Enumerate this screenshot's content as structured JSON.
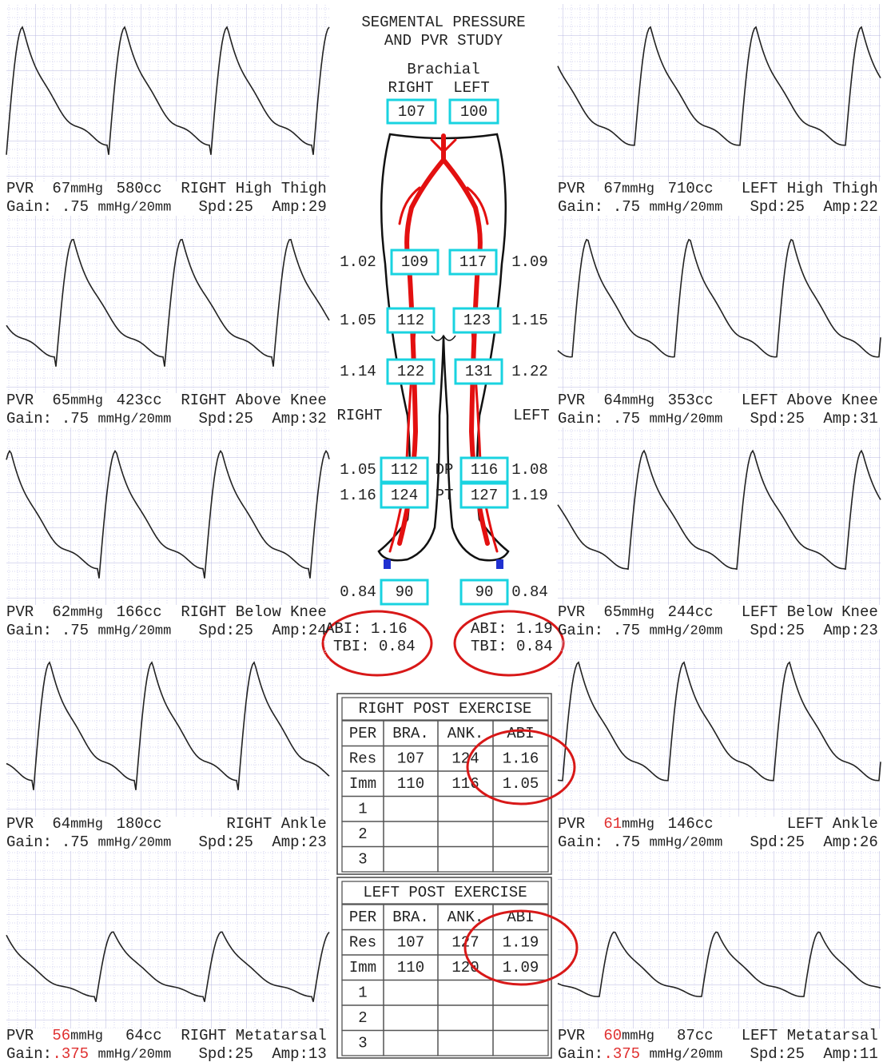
{
  "header": {
    "title": [
      "SEGMENTAL PRESSURE",
      "AND PVR STUDY"
    ],
    "brachial": "Brachial",
    "right": "RIGHT",
    "left": "LEFT",
    "brachial_right": "107",
    "brachial_left": "100"
  },
  "side_labels": {
    "right": "RIGHT",
    "left": "LEFT"
  },
  "segments": [
    {
      "right_ratio": "1.02",
      "right_pressure": "109",
      "left_pressure": "117",
      "left_ratio": "1.09"
    },
    {
      "right_ratio": "1.05",
      "right_pressure": "112",
      "left_pressure": "123",
      "left_ratio": "1.15"
    },
    {
      "right_ratio": "1.14",
      "right_pressure": "122",
      "left_pressure": "131",
      "left_ratio": "1.22"
    },
    {
      "right_ratio": "1.05",
      "right_pressure": "112",
      "site": "DP",
      "left_pressure": "116",
      "left_ratio": "1.08"
    },
    {
      "right_ratio": "1.16",
      "right_pressure": "124",
      "site": "PT",
      "left_pressure": "127",
      "left_ratio": "1.19"
    },
    {
      "right_ratio": "0.84",
      "right_pressure": "90",
      "left_pressure": "90",
      "left_ratio": "0.84"
    }
  ],
  "indices": {
    "right": {
      "abi": "ABI: 1.16",
      "tbi": "TBI: 0.84"
    },
    "left": {
      "abi": "ABI: 1.19",
      "tbi": "TBI: 0.84"
    }
  },
  "panels": {
    "right": [
      {
        "pvr": "PVR",
        "pressure": "67",
        "unit": "mmHg",
        "volume": "580cc",
        "site": "RIGHT High Thigh",
        "gain_label": "Gain:",
        "gain": ".75",
        "gain_unit": "mmHg/20mm",
        "speed": "Spd:25",
        "amp": "Amp:29"
      },
      {
        "pvr": "PVR",
        "pressure": "65",
        "unit": "mmHg",
        "volume": "423cc",
        "site": "RIGHT Above Knee",
        "gain_label": "Gain:",
        "gain": ".75",
        "gain_unit": "mmHg/20mm",
        "speed": "Spd:25",
        "amp": "Amp:32"
      },
      {
        "pvr": "PVR",
        "pressure": "62",
        "unit": "mmHg",
        "volume": "166cc",
        "site": "RIGHT Below Knee",
        "gain_label": "Gain:",
        "gain": ".75",
        "gain_unit": "mmHg/20mm",
        "speed": "Spd:25",
        "amp": "Amp:24"
      },
      {
        "pvr": "PVR",
        "pressure": "64",
        "unit": "mmHg",
        "volume": "180cc",
        "site": "RIGHT Ankle",
        "gain_label": "Gain:",
        "gain": ".75",
        "gain_unit": "mmHg/20mm",
        "speed": "Spd:25",
        "amp": "Amp:23"
      },
      {
        "pvr": "PVR",
        "pressure": "56",
        "pressure_color": "#e03030",
        "unit": "mmHg",
        "volume": "64cc",
        "site": "RIGHT Metatarsal",
        "gain_label": "Gain:",
        "gain": ".375",
        "gain_color": "#e03030",
        "gain_unit": "mmHg/20mm",
        "speed": "Spd:25",
        "amp": "Amp:13"
      }
    ],
    "left": [
      {
        "pvr": "PVR",
        "pressure": "67",
        "unit": "mmHg",
        "volume": "710cc",
        "site": "LEFT High Thigh",
        "gain_label": "Gain:",
        "gain": ".75",
        "gain_unit": "mmHg/20mm",
        "speed": "Spd:25",
        "amp": "Amp:22"
      },
      {
        "pvr": "PVR",
        "pressure": "64",
        "unit": "mmHg",
        "volume": "353cc",
        "site": "LEFT Above Knee",
        "gain_label": "Gain:",
        "gain": ".75",
        "gain_unit": "mmHg/20mm",
        "speed": "Spd:25",
        "amp": "Amp:31"
      },
      {
        "pvr": "PVR",
        "pressure": "65",
        "unit": "mmHg",
        "volume": "244cc",
        "site": "LEFT Below Knee",
        "gain_label": "Gain:",
        "gain": ".75",
        "gain_unit": "mmHg/20mm",
        "speed": "Spd:25",
        "amp": "Amp:23"
      },
      {
        "pvr": "PVR",
        "pressure": "61",
        "pressure_color": "#e03030",
        "unit": "mmHg",
        "volume": "146cc",
        "site": "LEFT Ankle",
        "gain_label": "Gain:",
        "gain": ".75",
        "gain_unit": "mmHg/20mm",
        "speed": "Spd:25",
        "amp": "Amp:26"
      },
      {
        "pvr": "PVR",
        "pressure": "60",
        "pressure_color": "#e03030",
        "unit": "mmHg",
        "volume": "87cc",
        "site": "LEFT Metatarsal",
        "gain_label": "Gain:",
        "gain": ".375",
        "gain_color": "#e03030",
        "gain_unit": "mmHg/20mm",
        "speed": "Spd:25",
        "amp": "Amp:11"
      }
    ]
  },
  "tables": [
    {
      "title": "RIGHT POST EXERCISE",
      "header": [
        "PER",
        "BRA.",
        "ANK.",
        "ABI"
      ],
      "rows": [
        [
          "Res",
          "107",
          "124",
          "1.16"
        ],
        [
          "Imm",
          "110",
          "116",
          "1.05"
        ],
        [
          "1"
        ],
        [
          "2"
        ],
        [
          "3"
        ]
      ]
    },
    {
      "title": "LEFT POST EXERCISE",
      "header": [
        "PER",
        "BRA.",
        "ANK.",
        "ABI"
      ],
      "rows": [
        [
          "Res",
          "107",
          "127",
          "1.19"
        ],
        [
          "Imm",
          "110",
          "120",
          "1.09"
        ],
        [
          "1"
        ],
        [
          "2"
        ],
        [
          "3"
        ]
      ]
    }
  ]
}
